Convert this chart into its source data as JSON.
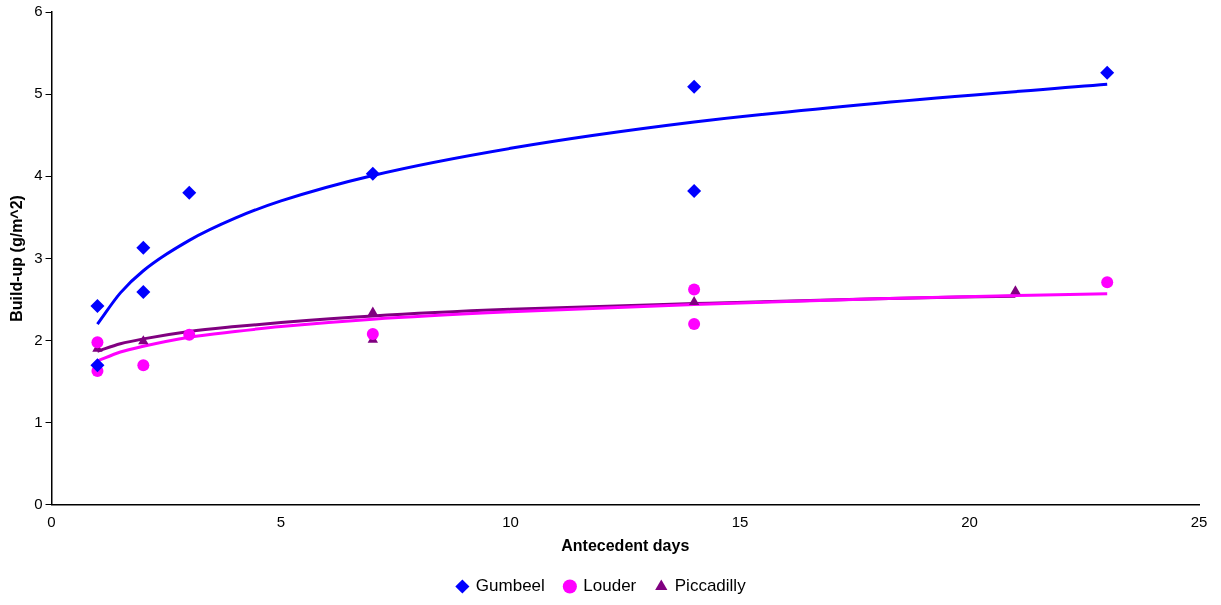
{
  "chart_data": {
    "type": "scatter",
    "xlabel": "Antecedent days",
    "ylabel": "Build-up (g/m^2)",
    "xlim": [
      0,
      25
    ],
    "xticks": [
      0,
      5,
      10,
      15,
      20,
      25
    ],
    "ylim": [
      0,
      6
    ],
    "yticks": [
      0,
      1,
      2,
      3,
      4,
      5,
      6
    ],
    "grid": false,
    "legend": "bottom",
    "series": [
      {
        "name": "Gumbeel",
        "color": "#0000ff",
        "marker": "diamond",
        "x": [
          1,
          1,
          2,
          2,
          3,
          7,
          14,
          14,
          23
        ],
        "values": [
          2.42,
          1.7,
          3.13,
          2.59,
          3.8,
          4.03,
          5.09,
          3.82,
          5.26
        ]
      },
      {
        "name": "Louder",
        "color": "#ff00ff",
        "marker": "circle",
        "x": [
          1,
          1,
          2,
          3,
          7,
          14,
          14,
          23
        ],
        "values": [
          1.98,
          1.63,
          1.7,
          2.07,
          2.08,
          2.62,
          2.2,
          2.71
        ]
      },
      {
        "name": "Piccadilly",
        "color": "#800080",
        "marker": "triangle",
        "x": [
          1,
          2,
          7,
          7,
          14,
          21
        ],
        "values": [
          1.9,
          1.99,
          2.34,
          2.01,
          2.47,
          2.6
        ]
      },
      {
        "type": "line",
        "color": "#0000ff",
        "marker": "none",
        "x": [
          1,
          1.5,
          2,
          3,
          4,
          5,
          7,
          10,
          14,
          18,
          23
        ],
        "values": [
          2.2,
          2.58,
          2.85,
          3.22,
          3.49,
          3.7,
          4.01,
          4.34,
          4.66,
          4.89,
          5.12
        ]
      },
      {
        "type": "line",
        "color": "#ff00ff",
        "marker": "none",
        "x": [
          1,
          1.5,
          2,
          3,
          4,
          5,
          7,
          10,
          14,
          18,
          23
        ],
        "values": [
          1.75,
          1.86,
          1.93,
          2.04,
          2.11,
          2.17,
          2.26,
          2.35,
          2.44,
          2.51,
          2.57
        ]
      },
      {
        "type": "line",
        "color": "#800080",
        "marker": "none",
        "x": [
          1,
          1.5,
          2,
          3,
          4,
          5,
          7,
          10,
          14,
          18,
          21
        ],
        "values": [
          1.87,
          1.96,
          2.02,
          2.11,
          2.17,
          2.22,
          2.3,
          2.38,
          2.45,
          2.51,
          2.54
        ]
      }
    ]
  }
}
